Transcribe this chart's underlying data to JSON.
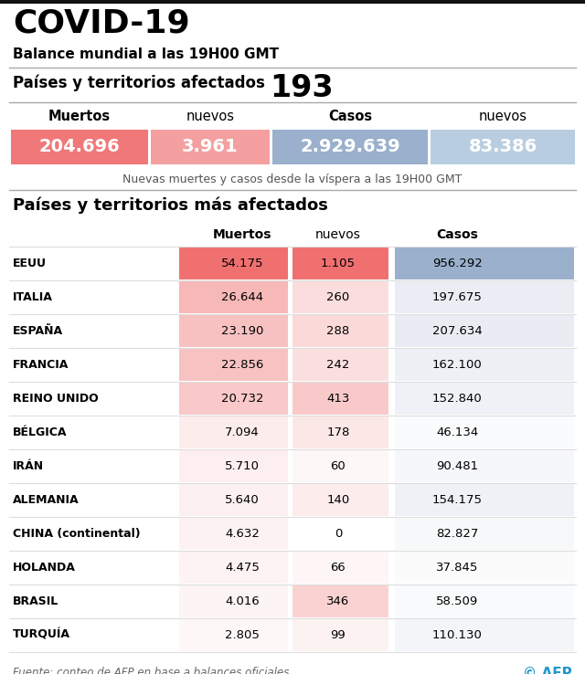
{
  "title": "COVID-19",
  "subtitle": "Balance mundial a las 19H00 GMT",
  "countries_label": "Países y territorios afectados",
  "countries_count": "193",
  "summary_headers": [
    "Muertos",
    "nuevos",
    "Casos",
    "nuevos"
  ],
  "summary_values": [
    "204.696",
    "3.961",
    "2.929.639",
    "83.386"
  ],
  "summary_note": "Nuevas muertes y casos desde la víspera a las 19H00 GMT",
  "table_title": "Países y territorios más afectados",
  "table_col_headers": [
    "Muertos",
    "nuevos",
    "Casos"
  ],
  "countries": [
    "EEUU",
    "ITALIA",
    "ESPAÑA",
    "FRANCIA",
    "REINO UNIDO",
    "BÉLGICA",
    "IRÁN",
    "ALEMANIA",
    "CHINA (continental)",
    "HOLANDA",
    "BRASIL",
    "TURQUÍA"
  ],
  "muertos": [
    "54.175",
    "26.644",
    "23.190",
    "22.856",
    "20.732",
    "7.094",
    "5.710",
    "5.640",
    "4.632",
    "4.475",
    "4.016",
    "2.805"
  ],
  "nuevos": [
    "1.105",
    "260",
    "288",
    "242",
    "413",
    "178",
    "60",
    "140",
    "0",
    "66",
    "346",
    "99"
  ],
  "casos": [
    "956.292",
    "197.675",
    "207.634",
    "162.100",
    "152.840",
    "46.134",
    "90.481",
    "154.175",
    "82.827",
    "37.845",
    "58.509",
    "110.130"
  ],
  "muertos_vals": [
    54175,
    26644,
    23190,
    22856,
    20732,
    7094,
    5710,
    5640,
    4632,
    4475,
    4016,
    2805
  ],
  "nuevos_vals": [
    1105,
    260,
    288,
    242,
    413,
    178,
    60,
    140,
    0,
    66,
    346,
    99
  ],
  "casos_vals": [
    956292,
    197675,
    207634,
    162100,
    152840,
    46134,
    90481,
    154175,
    82827,
    37845,
    58509,
    110130
  ],
  "color_red_strong": "#f07878",
  "color_blue_strong": "#9ab0cc",
  "color_bg": "#ffffff",
  "source_text": "Fuente: conteo de AFP en base a balances oficiales",
  "afp_text": "© AFP"
}
